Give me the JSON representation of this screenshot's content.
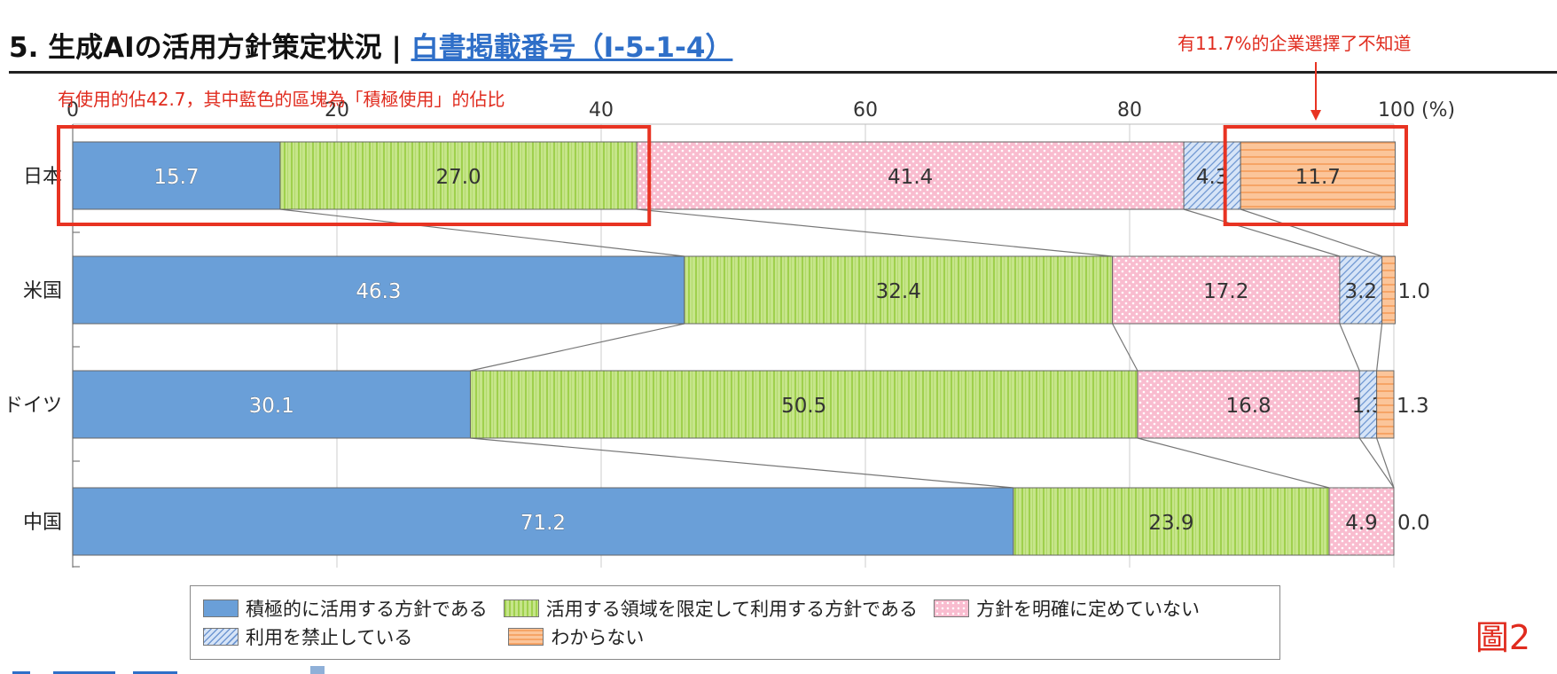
{
  "header": {
    "title": "5. 生成AIの活用方針策定状況 | ",
    "link_text": "白書掲載番号（Ⅰ-5-1-4）"
  },
  "annotations": {
    "used_note": "有使用的佔42.7，其中藍色的區塊為「積極使用」的佔比",
    "unknown_note": "有11.7%的企業選擇了不知道",
    "figure_label": "圖2"
  },
  "colors": {
    "accent_red": "#e02b1e",
    "link_blue": "#2f6fc8"
  },
  "chart_data": {
    "type": "bar",
    "orientation": "horizontal",
    "stacked": true,
    "categories": [
      "日本",
      "米国",
      "ドイツ",
      "中国"
    ],
    "xlim": [
      0,
      100
    ],
    "xticks": [
      0,
      20,
      40,
      60,
      80,
      100
    ],
    "xunit": "(%)",
    "grid": true,
    "legend_position": "bottom",
    "series": [
      {
        "name": "積極的に活用する方針である",
        "values": [
          15.7,
          46.3,
          30.1,
          71.2
        ],
        "color": "#6a9fd8",
        "pattern": "solid"
      },
      {
        "name": "活用する領域を限定して利用する方針である",
        "values": [
          27.0,
          32.4,
          50.5,
          23.9
        ],
        "color": "#c6e58a",
        "pattern": "vertical-lines"
      },
      {
        "name": "方針を明確に定めていない",
        "values": [
          41.4,
          17.2,
          16.8,
          4.9
        ],
        "color": "#f9bccf",
        "pattern": "dots"
      },
      {
        "name": "利用を禁止している",
        "values": [
          4.3,
          3.2,
          1.3,
          0.0
        ],
        "color": "#c5d8f3",
        "pattern": "diagonal"
      },
      {
        "name": "わからない",
        "values": [
          11.7,
          1.0,
          1.3,
          0.0
        ],
        "color": "#fbc59a",
        "pattern": "horizontal-lines"
      }
    ],
    "value_labels": [
      [
        "15.7",
        "27.0",
        "41.4",
        "4.3",
        "11.7"
      ],
      [
        "46.3",
        "32.4",
        "17.2",
        "3.2",
        "1.0"
      ],
      [
        "30.1",
        "50.5",
        "16.8",
        "1.3",
        "1.3"
      ],
      [
        "71.2",
        "23.9",
        "4.9",
        "",
        "0.0"
      ]
    ],
    "highlights": [
      {
        "row": 0,
        "from": 0,
        "to": 42.7
      },
      {
        "row": 0,
        "from": 88.3,
        "to": 100
      }
    ]
  }
}
